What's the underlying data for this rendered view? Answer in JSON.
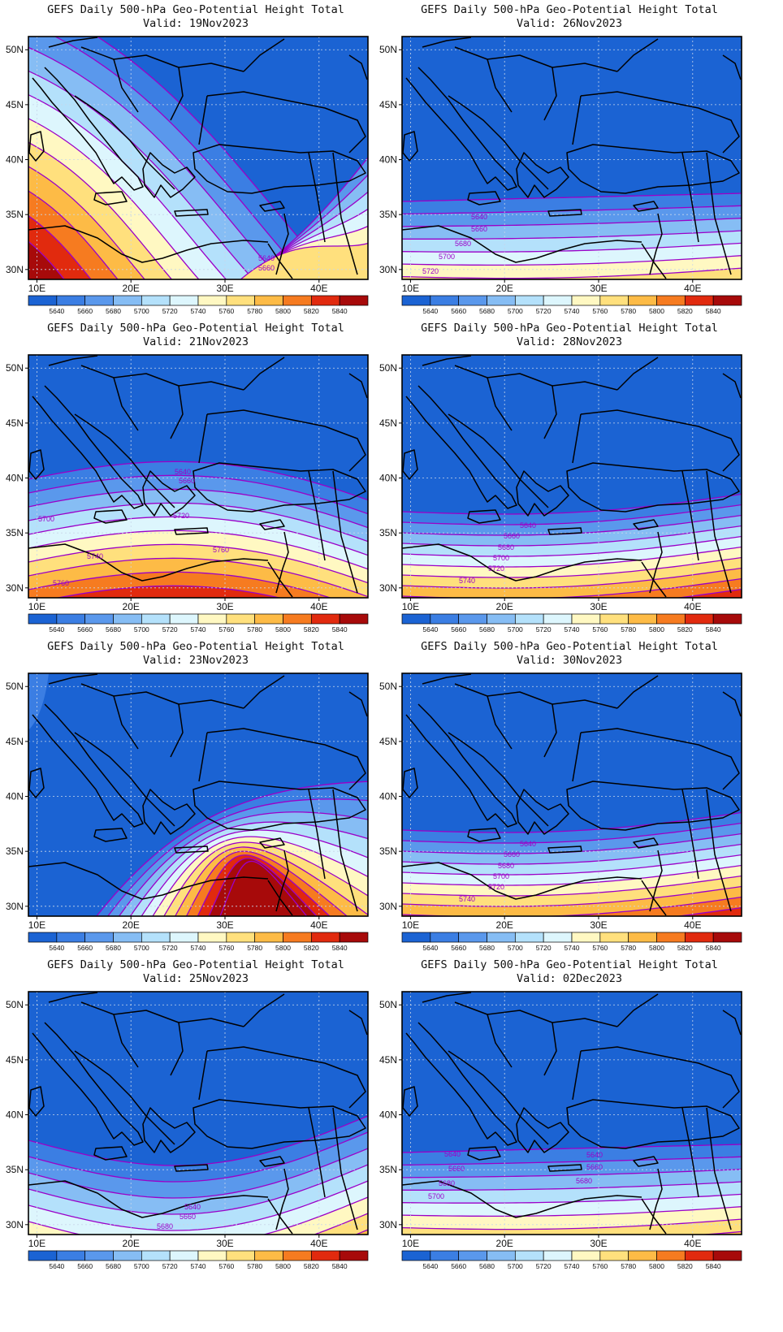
{
  "figure": {
    "panels": [
      {
        "title": "GEFS Daily 500-hPa Geo-Potential Height Total",
        "valid": "Valid: 19Nov2023",
        "pattern": "ridge_west",
        "contour_labels": [
          "5640",
          "5660"
        ]
      },
      {
        "title": "GEFS Daily 500-hPa Geo-Potential Height Total",
        "valid": "Valid: 26Nov2023",
        "pattern": "zonal_low",
        "contour_labels": [
          "5640",
          "5660",
          "5680",
          "5700",
          "5720"
        ]
      },
      {
        "title": "GEFS Daily 500-hPa Geo-Potential Height Total",
        "valid": "Valid: 21Nov2023",
        "pattern": "bulge_central",
        "contour_labels": [
          "5640",
          "5660",
          "5720",
          "5700",
          "5740",
          "5760",
          "5760"
        ]
      },
      {
        "title": "GEFS Daily 500-hPa Geo-Potential Height Total",
        "valid": "Valid: 28Nov2023",
        "pattern": "zonal_mid",
        "contour_labels": [
          "5640",
          "5660",
          "5680",
          "5700",
          "5720",
          "5740"
        ]
      },
      {
        "title": "GEFS Daily 500-hPa Geo-Potential Height Total",
        "valid": "Valid: 23Nov2023",
        "pattern": "trough_diag",
        "contour_labels": []
      },
      {
        "title": "GEFS Daily 500-hPa Geo-Potential Height Total",
        "valid": "Valid: 30Nov2023",
        "pattern": "zonal_mid",
        "contour_labels": [
          "5640",
          "5660",
          "5680",
          "5700",
          "5720",
          "5740"
        ]
      },
      {
        "title": "GEFS Daily 500-hPa Geo-Potential Height Total",
        "valid": "Valid: 25Nov2023",
        "pattern": "trough_south",
        "contour_labels": [
          "5640",
          "5660",
          "5680"
        ]
      },
      {
        "title": "GEFS Daily 500-hPa Geo-Potential Height Total",
        "valid": "Valid: 02Dec2023",
        "pattern": "zonal_low2",
        "contour_labels": [
          "5640",
          "5660",
          "5680",
          "5700",
          "5640",
          "5660",
          "5680"
        ]
      }
    ],
    "lat_ticks": [
      "50N",
      "45N",
      "40N",
      "35N",
      "30N"
    ],
    "lon_ticks": [
      "10E",
      "20E",
      "30E",
      "40E"
    ],
    "colorbar": {
      "labels": [
        "5640",
        "5660",
        "5680",
        "5700",
        "5720",
        "5740",
        "5760",
        "5780",
        "5800",
        "5820",
        "5840"
      ],
      "colors": [
        "#1b63d3",
        "#3b7ee3",
        "#5a98ec",
        "#86bdf4",
        "#b4e1fb",
        "#ddf6fd",
        "#fff8c2",
        "#ffe07d",
        "#fdbb46",
        "#f67b20",
        "#e12a0e",
        "#a70a0a"
      ]
    },
    "contour_color": "#9b00c8",
    "land_line_color": "#000000"
  }
}
